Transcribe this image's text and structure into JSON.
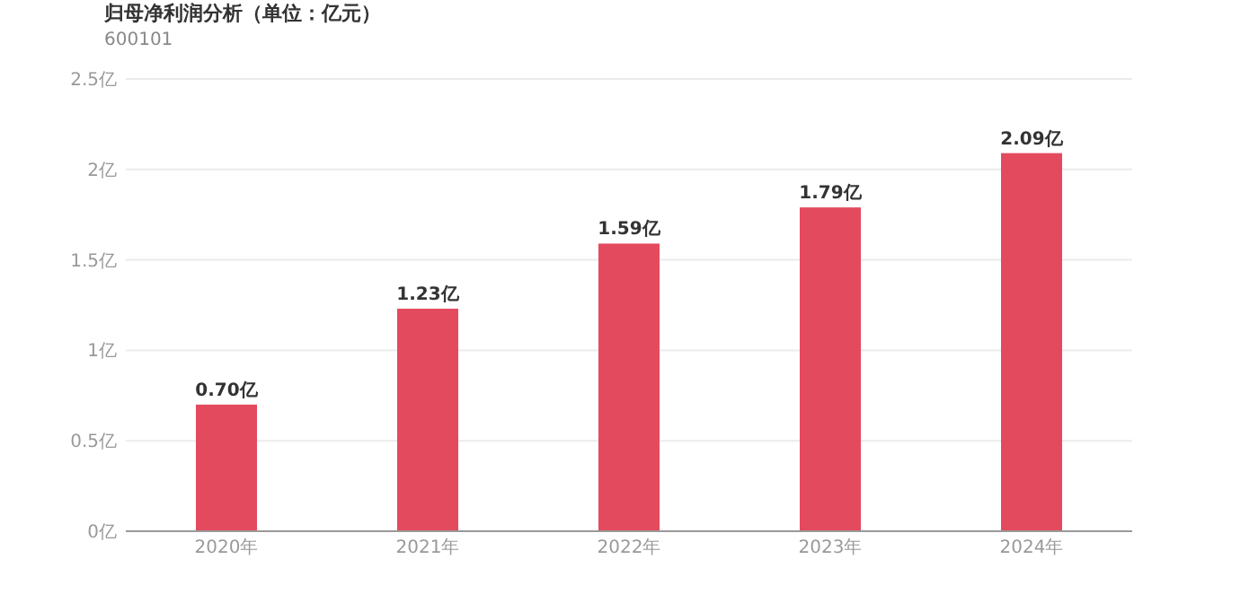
{
  "chart_data": {
    "type": "bar",
    "title": "归母净利润分析（单位：亿元）",
    "subtitle": "600101",
    "categories": [
      "2020年",
      "2021年",
      "2022年",
      "2023年",
      "2024年"
    ],
    "values": [
      0.7,
      1.23,
      1.59,
      1.79,
      2.09
    ],
    "value_labels": [
      "0.70亿",
      "1.23亿",
      "1.59亿",
      "1.79亿",
      "2.09亿"
    ],
    "color": "#e44a5e",
    "ylim": [
      0,
      2.5
    ],
    "yticks": [
      {
        "value": 0,
        "label": "0亿"
      },
      {
        "value": 0.5,
        "label": "0.5亿"
      },
      {
        "value": 1,
        "label": "1亿"
      },
      {
        "value": 1.5,
        "label": "1.5亿"
      },
      {
        "value": 2,
        "label": "2亿"
      },
      {
        "value": 2.5,
        "label": "2.5亿"
      }
    ],
    "grid": "y"
  }
}
